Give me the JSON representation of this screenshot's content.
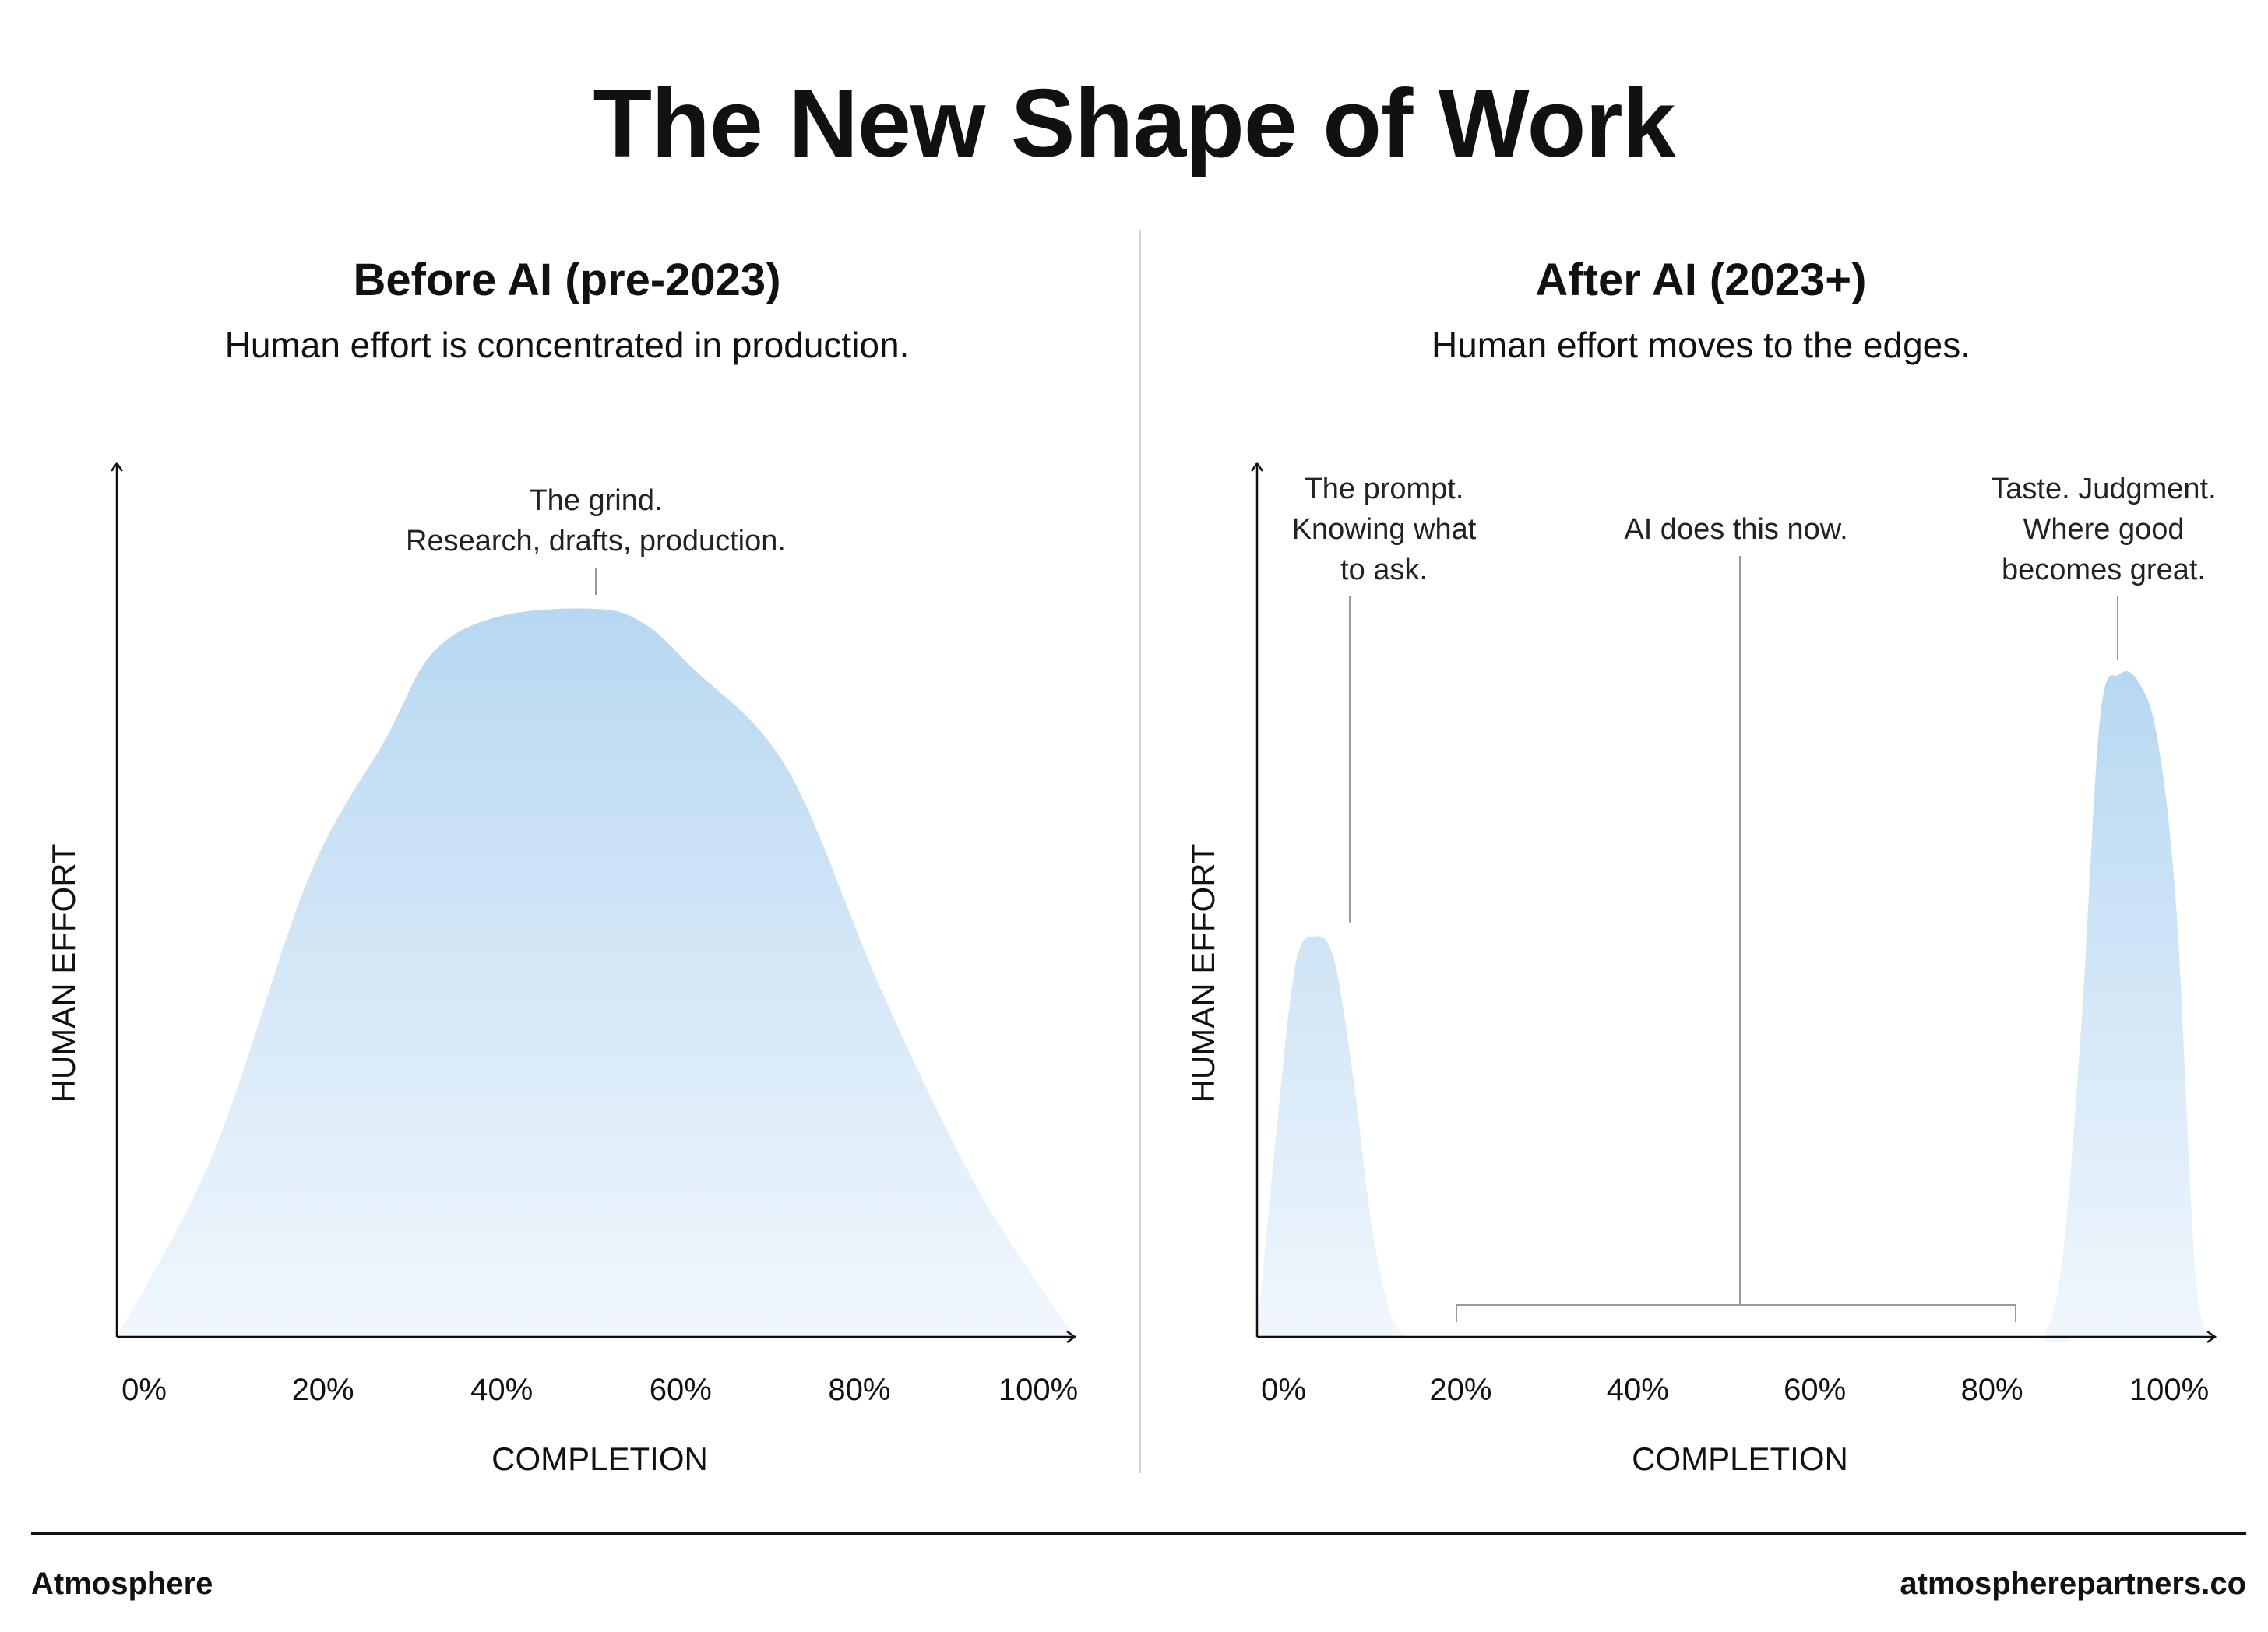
{
  "title": "The New Shape of Work",
  "footer": {
    "brand": "Atmosphere",
    "url": "atmospherepartners.co"
  },
  "colors": {
    "fill_top": "#b7d8f1",
    "fill_bottom": "#f1f7fd",
    "axis": "#111111",
    "leader": "#9a9a9a",
    "divider": "#d2d2d2"
  },
  "chart_data": [
    {
      "type": "area",
      "title": "Before AI (pre-2023)",
      "subtitle": "Human effort is concentrated in production.",
      "xlabel": "COMPLETION",
      "ylabel": "HUMAN EFFORT",
      "xticks": [
        "0%",
        "20%",
        "40%",
        "60%",
        "80%",
        "100%"
      ],
      "xlim": [
        0,
        100
      ],
      "ylim": [
        0,
        100
      ],
      "x": [
        0,
        10,
        20,
        28,
        33,
        40,
        50,
        55,
        60,
        70,
        80,
        90,
        100
      ],
      "y": [
        0,
        25,
        63,
        82,
        94,
        99,
        100,
        98,
        92,
        78,
        47,
        20,
        0
      ],
      "annotations": [
        {
          "lines": [
            "The grind.",
            "Research, drafts, production."
          ],
          "x": 50,
          "target_y": 100
        }
      ]
    },
    {
      "type": "area",
      "title": "After AI (2023+)",
      "subtitle": "Human effort moves to the edges.",
      "xlabel": "COMPLETION",
      "ylabel": "HUMAN EFFORT",
      "xticks": [
        "0%",
        "20%",
        "40%",
        "60%",
        "80%",
        "100%"
      ],
      "xlim": [
        0,
        100
      ],
      "ylim": [
        0,
        100
      ],
      "x": [
        0,
        2,
        4,
        6,
        8,
        10,
        12,
        14,
        16,
        18,
        20,
        80,
        82,
        84,
        86,
        88,
        90,
        92,
        94,
        96,
        98,
        100
      ],
      "y": [
        0,
        28,
        51,
        55,
        52,
        36,
        15,
        3,
        0,
        0,
        0,
        0,
        0,
        10,
        42,
        85,
        91,
        90,
        82,
        58,
        8,
        0
      ],
      "annotations": [
        {
          "lines": [
            "The prompt.",
            "Knowing what",
            "to ask."
          ],
          "x": 10,
          "target_y": 55
        },
        {
          "lines": [
            "AI does this now."
          ],
          "x": 50,
          "bracket": [
            20,
            80
          ]
        },
        {
          "lines": [
            "Taste. Judgment.",
            "Where good",
            "becomes great."
          ],
          "x": 90,
          "target_y": 91
        }
      ]
    }
  ]
}
